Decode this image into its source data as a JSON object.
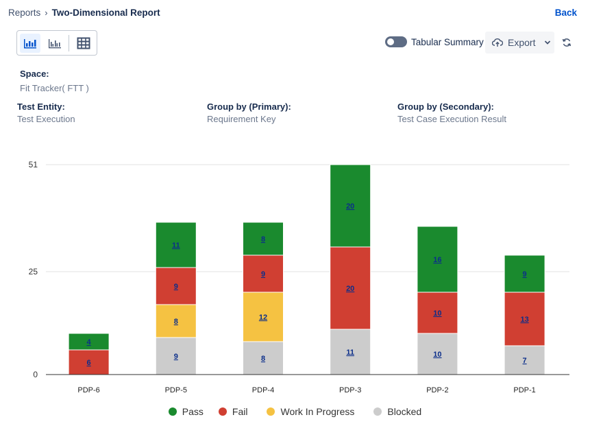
{
  "breadcrumb": {
    "root": "Reports",
    "current": "Two-Dimensional Report"
  },
  "back_label": "Back",
  "toolbar": {
    "views": [
      "stacked-bar-chart-icon",
      "grouped-bar-chart-icon",
      "table-grid-icon"
    ],
    "tabular_summary_label": "Tabular Summary",
    "tabular_summary_on": false,
    "export_label": "Export"
  },
  "meta": {
    "space_label": "Space:",
    "space_value": "Fit Tracker( FTT )",
    "test_entity_label": "Test Entity:",
    "test_entity_value": "Test Execution",
    "group_primary_label": "Group by (Primary):",
    "group_primary_value": "Requirement Key",
    "group_secondary_label": "Group by (Secondary):",
    "group_secondary_value": "Test Case Execution Result"
  },
  "colors": {
    "pass": "#1a8a2e",
    "fail": "#d03f32",
    "wip": "#f5c242",
    "blocked": "#cccccc",
    "accent": "#0052cc"
  },
  "chart_data": {
    "type": "bar",
    "stacked": true,
    "title": "",
    "xlabel": "",
    "ylabel": "",
    "ylim": [
      0,
      51
    ],
    "yticks": [
      0,
      25,
      51
    ],
    "categories": [
      "PDP-6",
      "PDP-5",
      "PDP-4",
      "PDP-3",
      "PDP-2",
      "PDP-1"
    ],
    "series": [
      {
        "name": "Blocked",
        "key": "blocked",
        "values": [
          0,
          9,
          8,
          11,
          10,
          7
        ]
      },
      {
        "name": "Work In Progress",
        "key": "wip",
        "values": [
          0,
          8,
          12,
          0,
          0,
          0
        ]
      },
      {
        "name": "Fail",
        "key": "fail",
        "values": [
          6,
          9,
          9,
          20,
          10,
          13
        ]
      },
      {
        "name": "Pass",
        "key": "pass",
        "values": [
          4,
          11,
          8,
          20,
          16,
          9
        ]
      }
    ],
    "legend": [
      "Pass",
      "Fail",
      "Work In Progress",
      "Blocked"
    ],
    "legend_keys": [
      "pass",
      "fail",
      "wip",
      "blocked"
    ],
    "legend_position": "bottom"
  }
}
